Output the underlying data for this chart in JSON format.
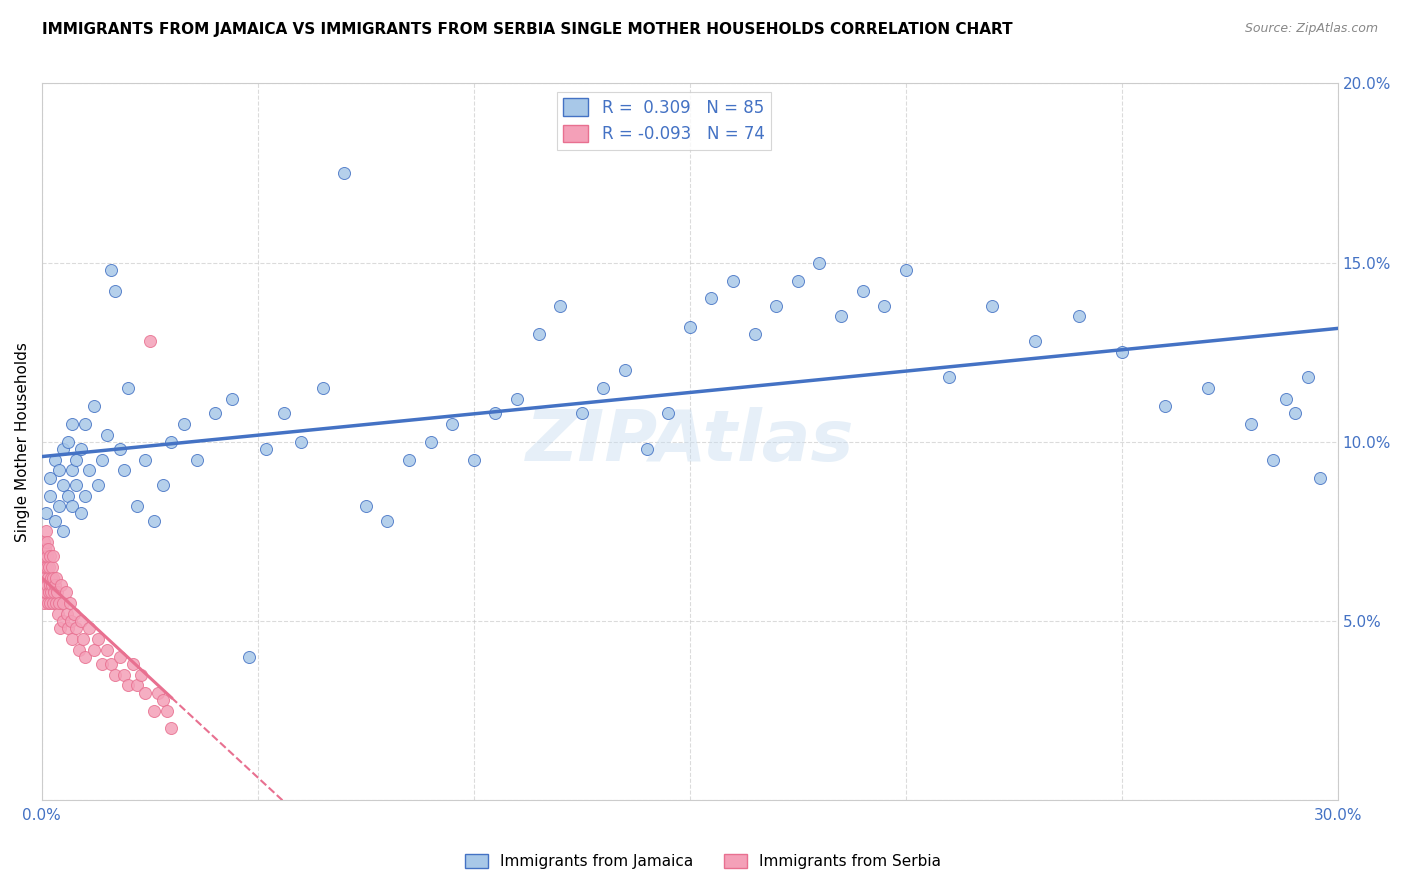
{
  "title": "IMMIGRANTS FROM JAMAICA VS IMMIGRANTS FROM SERBIA SINGLE MOTHER HOUSEHOLDS CORRELATION CHART",
  "source": "Source: ZipAtlas.com",
  "ylabel": "Single Mother Households",
  "xlim": [
    0.0,
    0.3
  ],
  "ylim": [
    0.0,
    0.2
  ],
  "xticks": [
    0.0,
    0.05,
    0.1,
    0.15,
    0.2,
    0.25,
    0.3
  ],
  "yticks": [
    0.0,
    0.05,
    0.1,
    0.15,
    0.2
  ],
  "legend_labels": [
    "Immigrants from Jamaica",
    "Immigrants from Serbia"
  ],
  "r_jamaica": 0.309,
  "n_jamaica": 85,
  "r_serbia": -0.093,
  "n_serbia": 74,
  "color_jamaica": "#a8c8e8",
  "color_serbia": "#f4a0b8",
  "color_jamaica_line": "#4472C4",
  "color_serbia_line": "#e87090",
  "color_axis_labels": "#4472C4",
  "watermark": "ZIPAtlas",
  "jamaica_x": [
    0.001,
    0.002,
    0.002,
    0.003,
    0.003,
    0.004,
    0.004,
    0.005,
    0.005,
    0.005,
    0.006,
    0.006,
    0.007,
    0.007,
    0.007,
    0.008,
    0.008,
    0.009,
    0.009,
    0.01,
    0.01,
    0.011,
    0.012,
    0.013,
    0.014,
    0.015,
    0.016,
    0.017,
    0.018,
    0.019,
    0.02,
    0.022,
    0.024,
    0.026,
    0.028,
    0.03,
    0.033,
    0.036,
    0.04,
    0.044,
    0.048,
    0.052,
    0.056,
    0.06,
    0.065,
    0.07,
    0.075,
    0.08,
    0.085,
    0.09,
    0.095,
    0.1,
    0.105,
    0.11,
    0.115,
    0.12,
    0.125,
    0.13,
    0.135,
    0.14,
    0.145,
    0.15,
    0.155,
    0.16,
    0.165,
    0.17,
    0.175,
    0.18,
    0.185,
    0.19,
    0.195,
    0.2,
    0.21,
    0.22,
    0.23,
    0.24,
    0.25,
    0.26,
    0.27,
    0.28,
    0.285,
    0.288,
    0.29,
    0.293,
    0.296
  ],
  "jamaica_y": [
    0.08,
    0.085,
    0.09,
    0.078,
    0.095,
    0.082,
    0.092,
    0.075,
    0.088,
    0.098,
    0.085,
    0.1,
    0.082,
    0.092,
    0.105,
    0.088,
    0.095,
    0.08,
    0.098,
    0.085,
    0.105,
    0.092,
    0.11,
    0.088,
    0.095,
    0.102,
    0.148,
    0.142,
    0.098,
    0.092,
    0.115,
    0.082,
    0.095,
    0.078,
    0.088,
    0.1,
    0.105,
    0.095,
    0.108,
    0.112,
    0.04,
    0.098,
    0.108,
    0.1,
    0.115,
    0.175,
    0.082,
    0.078,
    0.095,
    0.1,
    0.105,
    0.095,
    0.108,
    0.112,
    0.13,
    0.138,
    0.108,
    0.115,
    0.12,
    0.098,
    0.108,
    0.132,
    0.14,
    0.145,
    0.13,
    0.138,
    0.145,
    0.15,
    0.135,
    0.142,
    0.138,
    0.148,
    0.118,
    0.138,
    0.128,
    0.135,
    0.125,
    0.11,
    0.115,
    0.105,
    0.095,
    0.112,
    0.108,
    0.118,
    0.09
  ],
  "serbia_x": [
    0.0002,
    0.0003,
    0.0004,
    0.0005,
    0.0005,
    0.0006,
    0.0007,
    0.0008,
    0.0008,
    0.0009,
    0.001,
    0.001,
    0.0011,
    0.0012,
    0.0012,
    0.0013,
    0.0014,
    0.0015,
    0.0015,
    0.0016,
    0.0017,
    0.0018,
    0.0019,
    0.002,
    0.0021,
    0.0022,
    0.0023,
    0.0024,
    0.0025,
    0.0026,
    0.0027,
    0.0028,
    0.003,
    0.0032,
    0.0034,
    0.0036,
    0.0038,
    0.004,
    0.0042,
    0.0045,
    0.0048,
    0.005,
    0.0055,
    0.0058,
    0.006,
    0.0065,
    0.0068,
    0.007,
    0.0075,
    0.008,
    0.0085,
    0.009,
    0.0095,
    0.01,
    0.011,
    0.012,
    0.013,
    0.014,
    0.015,
    0.016,
    0.017,
    0.018,
    0.019,
    0.02,
    0.021,
    0.022,
    0.023,
    0.024,
    0.025,
    0.026,
    0.027,
    0.028,
    0.029,
    0.03
  ],
  "serbia_y": [
    0.065,
    0.06,
    0.068,
    0.055,
    0.072,
    0.062,
    0.058,
    0.07,
    0.065,
    0.06,
    0.075,
    0.058,
    0.065,
    0.072,
    0.06,
    0.068,
    0.055,
    0.062,
    0.07,
    0.058,
    0.065,
    0.06,
    0.055,
    0.068,
    0.062,
    0.058,
    0.065,
    0.06,
    0.055,
    0.062,
    0.068,
    0.058,
    0.06,
    0.055,
    0.062,
    0.058,
    0.052,
    0.055,
    0.048,
    0.06,
    0.055,
    0.05,
    0.058,
    0.052,
    0.048,
    0.055,
    0.05,
    0.045,
    0.052,
    0.048,
    0.042,
    0.05,
    0.045,
    0.04,
    0.048,
    0.042,
    0.045,
    0.038,
    0.042,
    0.038,
    0.035,
    0.04,
    0.035,
    0.032,
    0.038,
    0.032,
    0.035,
    0.03,
    0.128,
    0.025,
    0.03,
    0.028,
    0.025,
    0.02
  ]
}
